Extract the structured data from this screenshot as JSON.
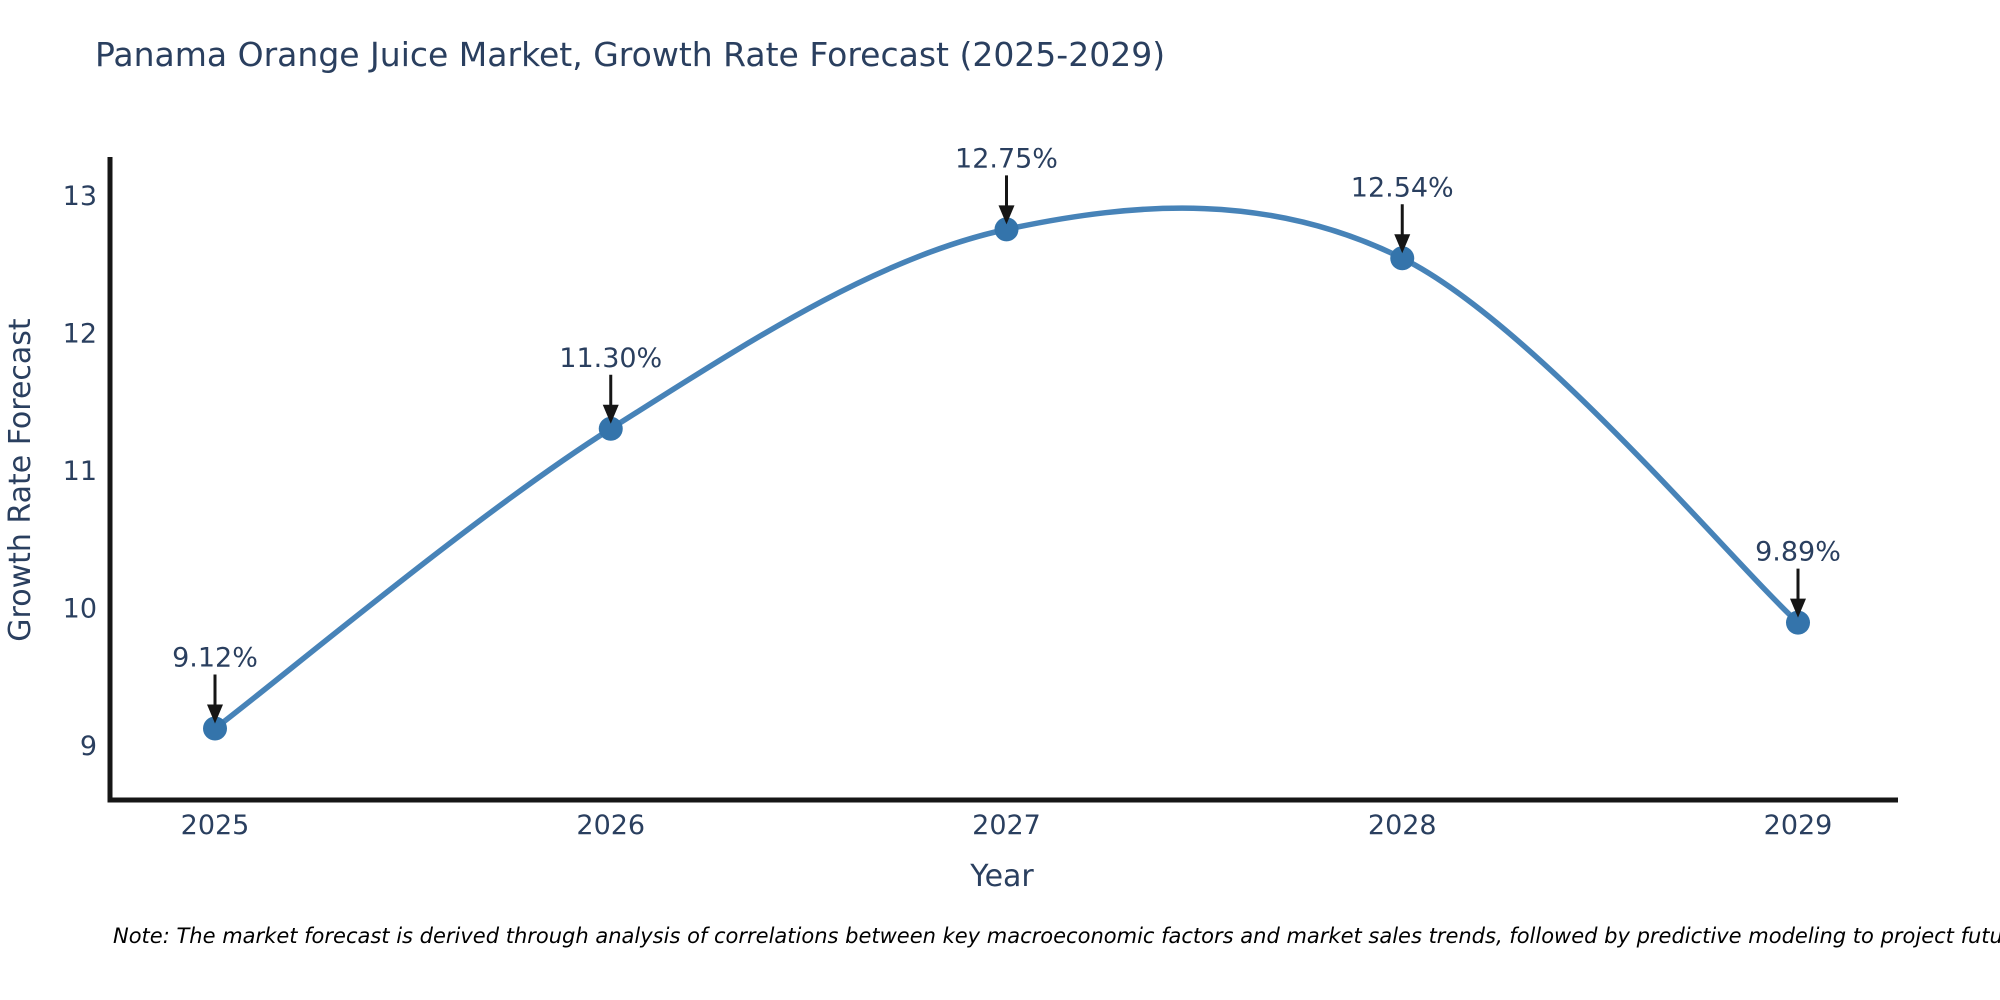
{
  "title": "Panama Orange Juice Market, Growth Rate Forecast (2025-2029)",
  "note": "Note: The market forecast is derived through analysis of correlations between key macroeconomic factors and market sales trends, followed by predictive modeling to project future sales",
  "colors": {
    "title_text": "#2a3f5f",
    "tick_text": "#2a3f5f",
    "axis_title_text": "#2a3f5f",
    "annotation_text": "#2a3f5f",
    "axis_line": "#161616",
    "arrow": "#161616",
    "line": "#4783b8",
    "marker": "#3474ab",
    "note_text": "#000000",
    "background": "#ffffff"
  },
  "chart_data": {
    "type": "line",
    "line_shape": "spline",
    "title": "Panama Orange Juice Market, Growth Rate Forecast (2025-2029)",
    "xlabel": "Year",
    "ylabel": "Growth Rate Forecast",
    "x": [
      2025,
      2026,
      2027,
      2028,
      2029
    ],
    "series": [
      {
        "name": "Growth Rate Forecast",
        "values": [
          9.12,
          11.3,
          12.75,
          12.54,
          9.89
        ]
      }
    ],
    "point_labels": [
      "9.12%",
      "11.30%",
      "12.75%",
      "12.54%",
      "9.89%"
    ],
    "x_ticks": [
      "2025",
      "2026",
      "2027",
      "2028",
      "2029"
    ],
    "y_ticks": [
      9,
      10,
      11,
      12,
      13
    ],
    "ylim": [
      8.6,
      13.3
    ],
    "grid": false,
    "legend": "none",
    "markers": true
  }
}
